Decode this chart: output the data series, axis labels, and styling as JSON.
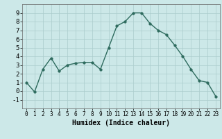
{
  "x": [
    0,
    1,
    2,
    3,
    4,
    5,
    6,
    7,
    8,
    9,
    10,
    11,
    12,
    13,
    14,
    15,
    16,
    17,
    18,
    19,
    20,
    21,
    22,
    23
  ],
  "y": [
    1.0,
    -0.1,
    2.5,
    3.8,
    2.3,
    3.0,
    3.2,
    3.3,
    3.3,
    2.5,
    5.0,
    7.5,
    8.0,
    9.0,
    9.0,
    7.8,
    7.0,
    6.5,
    5.3,
    4.0,
    2.5,
    1.2,
    1.0,
    -0.6
  ],
  "xlabel": "Humidex (Indice chaleur)",
  "xlim": [
    -0.5,
    23.5
  ],
  "ylim": [
    -2,
    10
  ],
  "yticks": [
    -1,
    0,
    1,
    2,
    3,
    4,
    5,
    6,
    7,
    8,
    9
  ],
  "xticks": [
    0,
    1,
    2,
    3,
    4,
    5,
    6,
    7,
    8,
    9,
    10,
    11,
    12,
    13,
    14,
    15,
    16,
    17,
    18,
    19,
    20,
    21,
    22,
    23
  ],
  "line_color": "#2e6b5e",
  "marker_size": 2.5,
  "bg_color": "#cce8e8",
  "grid_color": "#aacccc",
  "fig_bg": "#cce8e8",
  "xlabel_fontsize": 7.0,
  "tick_fontsize_x": 5.5,
  "tick_fontsize_y": 6.5
}
